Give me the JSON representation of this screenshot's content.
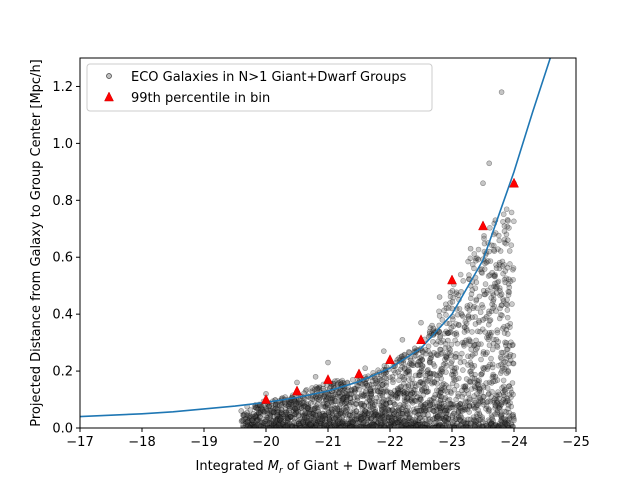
{
  "chart_data": {
    "type": "scatter",
    "title": "",
    "xlabel": "Integrated M_r of Giant + Dwarf Members",
    "xlabel_parts": {
      "prefix": "Integrated ",
      "symbol": "M",
      "subscript": "r",
      "suffix": " of Giant + Dwarf Members"
    },
    "ylabel": "Projected Distance from Galaxy to Group Center [Mpc/h]",
    "xlim": [
      -17,
      -25
    ],
    "ylim": [
      0,
      1.3
    ],
    "x_inverted": true,
    "xticks": [
      -17,
      -18,
      -19,
      -20,
      -21,
      -22,
      -23,
      -24,
      -25
    ],
    "xtick_labels": [
      "−17",
      "−18",
      "−19",
      "−20",
      "−21",
      "−22",
      "−23",
      "−24",
      "−25"
    ],
    "yticks": [
      0.0,
      0.2,
      0.4,
      0.6,
      0.8,
      1.0,
      1.2
    ],
    "ytick_labels": [
      "0.0",
      "0.2",
      "0.4",
      "0.6",
      "0.8",
      "1.0",
      "1.2"
    ],
    "grid": false,
    "legend_position": "top-left",
    "series": [
      {
        "name": "ECO Galaxies in N>1 Giant+Dwarf Groups",
        "kind": "scatter",
        "marker": "circle",
        "color": "#808080",
        "points": [
          [
            -19.7,
            0.02
          ],
          [
            -19.8,
            0.05
          ],
          [
            -19.9,
            0.08
          ],
          [
            -20.0,
            0.03
          ],
          [
            -20.1,
            0.06
          ],
          [
            -20.2,
            0.01
          ],
          [
            -20.3,
            0.09
          ],
          [
            -20.4,
            0.04
          ],
          [
            -20.5,
            0.07
          ],
          [
            -20.6,
            0.02
          ],
          [
            -20.7,
            0.05
          ],
          [
            -20.8,
            0.11
          ],
          [
            -20.9,
            0.03
          ],
          [
            -21.0,
            0.08
          ],
          [
            -21.1,
            0.14
          ],
          [
            -21.2,
            0.05
          ],
          [
            -21.3,
            0.1
          ],
          [
            -21.4,
            0.02
          ],
          [
            -21.5,
            0.16
          ],
          [
            -21.6,
            0.06
          ],
          [
            -21.7,
            0.12
          ],
          [
            -21.8,
            0.04
          ],
          [
            -21.9,
            0.19
          ],
          [
            -22.0,
            0.09
          ],
          [
            -22.1,
            0.23
          ],
          [
            -22.2,
            0.05
          ],
          [
            -22.3,
            0.15
          ],
          [
            -22.4,
            0.28
          ],
          [
            -22.5,
            0.1
          ],
          [
            -22.6,
            0.2
          ],
          [
            -22.7,
            0.35
          ],
          [
            -22.8,
            0.07
          ],
          [
            -22.9,
            0.25
          ],
          [
            -23.0,
            0.42
          ],
          [
            -23.1,
            0.12
          ],
          [
            -23.2,
            0.3
          ],
          [
            -23.3,
            0.5
          ],
          [
            -23.4,
            0.08
          ],
          [
            -23.5,
            0.38
          ],
          [
            -23.6,
            0.62
          ],
          [
            -23.7,
            0.18
          ],
          [
            -23.8,
            0.47
          ],
          [
            -23.9,
            0.66
          ],
          [
            -24.0,
            0.86
          ],
          [
            -23.8,
            1.18
          ],
          [
            -23.5,
            0.86
          ],
          [
            -23.6,
            0.93
          ],
          [
            -23.7,
            0.73
          ],
          [
            -20.5,
            0.16
          ],
          [
            -21.0,
            0.23
          ],
          [
            -21.6,
            0.21
          ],
          [
            -22.2,
            0.31
          ],
          [
            -22.8,
            0.46
          ],
          [
            -23.3,
            0.63
          ],
          [
            -19.6,
            0.06
          ],
          [
            -20.0,
            0.12
          ],
          [
            -20.8,
            0.18
          ],
          [
            -21.9,
            0.27
          ],
          [
            -22.5,
            0.37
          ],
          [
            -23.9,
            0.01
          ]
        ]
      },
      {
        "name": "99th percentile in bin",
        "kind": "scatter",
        "marker": "triangle",
        "color": "#ff0000",
        "points": [
          [
            -20.0,
            0.1
          ],
          [
            -20.5,
            0.13
          ],
          [
            -21.0,
            0.17
          ],
          [
            -21.5,
            0.19
          ],
          [
            -22.0,
            0.24
          ],
          [
            -22.5,
            0.31
          ],
          [
            -23.0,
            0.52
          ],
          [
            -23.5,
            0.71
          ],
          [
            -24.0,
            0.86
          ]
        ]
      },
      {
        "name": "",
        "kind": "line",
        "color": "#1f77b4",
        "x": [
          -17.0,
          -17.5,
          -18.0,
          -18.5,
          -19.0,
          -19.5,
          -20.0,
          -20.5,
          -21.0,
          -21.5,
          -22.0,
          -22.5,
          -23.0,
          -23.5,
          -24.0,
          -24.3,
          -24.6
        ],
        "y": [
          0.04,
          0.045,
          0.05,
          0.057,
          0.067,
          0.077,
          0.09,
          0.107,
          0.13,
          0.163,
          0.21,
          0.28,
          0.4,
          0.59,
          0.9,
          1.11,
          1.31
        ]
      }
    ]
  }
}
